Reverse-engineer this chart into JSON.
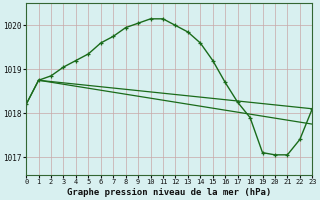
{
  "title": "Graphe pression niveau de la mer (hPa)",
  "background_color": "#d8f0f0",
  "grid_color": "#c8a8a8",
  "line_color": "#1a6b1a",
  "xlim": [
    0,
    23
  ],
  "ylim": [
    1016.6,
    1020.5
  ],
  "yticks": [
    1017,
    1018,
    1019,
    1020
  ],
  "xticks": [
    0,
    1,
    2,
    3,
    4,
    5,
    6,
    7,
    8,
    9,
    10,
    11,
    12,
    13,
    14,
    15,
    16,
    17,
    18,
    19,
    20,
    21,
    22,
    23
  ],
  "main_x": [
    0,
    1,
    2,
    3,
    4,
    5,
    6,
    7,
    8,
    9,
    10,
    11,
    12,
    13,
    14,
    15,
    16,
    17,
    18,
    19,
    20,
    21,
    22,
    23
  ],
  "main_y": [
    1018.2,
    1018.75,
    1018.85,
    1019.05,
    1019.2,
    1019.35,
    1019.6,
    1019.75,
    1019.95,
    1020.05,
    1020.15,
    1020.15,
    1020.0,
    1019.85,
    1019.6,
    1019.2,
    1018.7,
    1018.25,
    1017.9,
    1017.1,
    1017.05,
    1017.05,
    1017.4,
    1018.1
  ],
  "line1_x": [
    0,
    1,
    23
  ],
  "line1_y": [
    1018.2,
    1018.75,
    1018.1
  ],
  "line2_x": [
    1,
    23
  ],
  "line2_y": [
    1018.75,
    1017.75
  ],
  "spine_color": "#336633",
  "xlabel_fontsize": 6.5,
  "tick_fontsize": 5.0,
  "ytick_fontsize": 5.5
}
